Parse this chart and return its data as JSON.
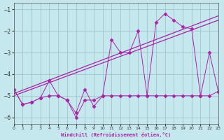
{
  "x": [
    0,
    1,
    2,
    3,
    4,
    5,
    6,
    7,
    8,
    9,
    10,
    11,
    12,
    13,
    14,
    15,
    16,
    17,
    18,
    19,
    20,
    21,
    22,
    23
  ],
  "series_main": [
    -4.7,
    -5.4,
    -5.3,
    -5.1,
    -4.3,
    -5.0,
    -5.2,
    -5.8,
    -4.7,
    -5.5,
    -5.0,
    -2.4,
    -3.0,
    -3.0,
    -2.0,
    -5.0,
    -1.6,
    -1.2,
    -1.5,
    -1.8,
    -1.9,
    -5.0,
    -3.0,
    -4.8
  ],
  "series_flat": [
    -4.7,
    -5.4,
    -5.3,
    -5.1,
    -5.0,
    -5.0,
    -5.2,
    -6.0,
    -5.2,
    -5.2,
    -5.0,
    -5.0,
    -5.0,
    -5.0,
    -5.0,
    -5.0,
    -5.0,
    -5.0,
    -5.0,
    -5.0,
    -5.0,
    -5.0,
    -5.0,
    -4.8
  ],
  "trend1": [
    -5.0,
    -1.5
  ],
  "trend2": [
    -4.9,
    -1.3
  ],
  "trend_x": [
    0,
    23
  ],
  "xlim": [
    0,
    23
  ],
  "ylim": [
    -6.3,
    -0.7
  ],
  "yticks": [
    -1,
    -2,
    -3,
    -4,
    -5,
    -6
  ],
  "xticks": [
    0,
    1,
    2,
    3,
    4,
    5,
    6,
    7,
    8,
    9,
    10,
    11,
    12,
    13,
    14,
    15,
    16,
    17,
    18,
    19,
    20,
    21,
    22,
    23
  ],
  "xlabel": "Windchill (Refroidissement éolien,°C)",
  "line_color": "#aa22aa",
  "bg_color": "#c5e8ee",
  "grid_color": "#9bbec4"
}
